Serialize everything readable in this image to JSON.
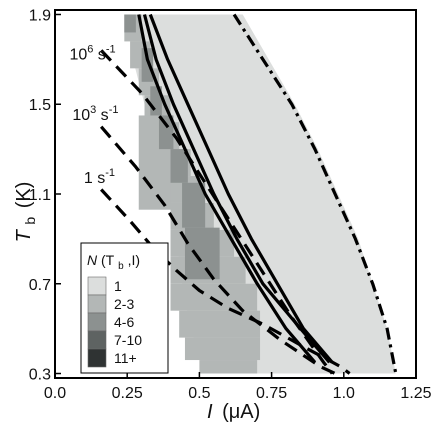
{
  "chart_data": {
    "type": "heatmap",
    "xlabel": {
      "main": "I",
      "unit": "(μA)"
    },
    "ylabel": {
      "main": "T",
      "sub": "b",
      "unit": "(K)"
    },
    "xlim": [
      0.0,
      1.25
    ],
    "ylim": [
      0.28,
      1.92
    ],
    "x_ticks": [
      0.0,
      0.25,
      0.5,
      0.75,
      1.0,
      1.25
    ],
    "x_tick_labels": [
      "0.0",
      "0.25",
      "0.5",
      "0.75",
      "1.0",
      "1.25"
    ],
    "y_ticks": [
      0.3,
      0.7,
      1.1,
      1.5,
      1.9
    ],
    "y_tick_labels": [
      "0.3",
      "0.7",
      "1.1",
      "1.5",
      "1.9"
    ],
    "grid": false,
    "colors": {
      "level_1": "#dcdedd",
      "level_2": "#b3b7b6",
      "level_3": "#8c9190",
      "level_4": "#5e6362",
      "level_5": "#2f3333",
      "lines": "#000000"
    },
    "legend": {
      "placement": "bottom-left",
      "title_parts": {
        "a": "N",
        "b": "(T",
        "c": "b",
        "d": ",I)"
      },
      "entries": [
        {
          "label": "1",
          "color": "#dcdedd"
        },
        {
          "label": "2-3",
          "color": "#b3b7b6"
        },
        {
          "label": "4-6",
          "color": "#8c9190"
        },
        {
          "label": "7-10",
          "color": "#5e6362"
        },
        {
          "label": "11+",
          "color": "#2f3333"
        }
      ]
    },
    "annotations": [
      {
        "id": "rate-1e6",
        "base": "10",
        "exp": "6",
        "unit": " s",
        "unit_exp": "-1",
        "x": 0.05,
        "y": 1.7
      },
      {
        "id": "rate-1e3",
        "base": "10",
        "exp": "3",
        "unit": " s",
        "unit_exp": "-1",
        "x": 0.06,
        "y": 1.43
      },
      {
        "id": "rate-1",
        "base": "1",
        "exp": "",
        "unit": " s",
        "unit_exp": "-1",
        "x": 0.1,
        "y": 1.15
      }
    ],
    "regions": {
      "level_1_envelope": {
        "left": [
          [
            0.25,
            1.9
          ],
          [
            0.27,
            1.7
          ],
          [
            0.31,
            1.5
          ],
          [
            0.35,
            1.3
          ],
          [
            0.39,
            1.1
          ],
          [
            0.42,
            0.9
          ],
          [
            0.44,
            0.7
          ],
          [
            0.47,
            0.5
          ],
          [
            0.52,
            0.3
          ]
        ],
        "right": [
          [
            0.65,
            1.9
          ],
          [
            0.74,
            1.7
          ],
          [
            0.83,
            1.5
          ],
          [
            0.91,
            1.3
          ],
          [
            0.98,
            1.1
          ],
          [
            1.05,
            0.9
          ],
          [
            1.1,
            0.7
          ],
          [
            1.15,
            0.5
          ],
          [
            1.18,
            0.3
          ]
        ]
      },
      "level_2_blocks": [
        {
          "x0": 0.24,
          "x1": 0.3,
          "y0": 1.78,
          "y1": 1.9
        },
        {
          "x0": 0.26,
          "x1": 0.33,
          "y0": 1.66,
          "y1": 1.78
        },
        {
          "x0": 0.29,
          "x1": 0.36,
          "y0": 1.54,
          "y1": 1.66
        },
        {
          "x0": 0.31,
          "x1": 0.4,
          "y0": 1.42,
          "y1": 1.54
        },
        {
          "x0": 0.34,
          "x1": 0.43,
          "y0": 1.3,
          "y1": 1.42
        },
        {
          "x0": 0.37,
          "x1": 0.47,
          "y0": 1.18,
          "y1": 1.3
        },
        {
          "x0": 0.39,
          "x1": 0.5,
          "y0": 1.06,
          "y1": 1.18
        },
        {
          "x0": 0.4,
          "x1": 0.55,
          "y0": 0.94,
          "y1": 1.06
        },
        {
          "x0": 0.4,
          "x1": 0.62,
          "y0": 0.82,
          "y1": 0.94
        },
        {
          "x0": 0.4,
          "x1": 0.66,
          "y0": 0.7,
          "y1": 0.82
        },
        {
          "x0": 0.4,
          "x1": 0.7,
          "y0": 0.58,
          "y1": 0.7
        },
        {
          "x0": 0.43,
          "x1": 0.71,
          "y0": 0.46,
          "y1": 0.58
        },
        {
          "x0": 0.45,
          "x1": 0.71,
          "y0": 0.36,
          "y1": 0.46
        },
        {
          "x0": 0.5,
          "x1": 0.7,
          "y0": 0.3,
          "y1": 0.36
        },
        {
          "x0": 0.29,
          "x1": 0.4,
          "y0": 1.03,
          "y1": 1.45
        }
      ],
      "level_3_blocks": [
        {
          "x0": 0.24,
          "x1": 0.28,
          "y0": 1.82,
          "y1": 1.9
        },
        {
          "x0": 0.3,
          "x1": 0.34,
          "y0": 1.6,
          "y1": 1.75
        },
        {
          "x0": 0.33,
          "x1": 0.37,
          "y0": 1.45,
          "y1": 1.58
        },
        {
          "x0": 0.36,
          "x1": 0.41,
          "y0": 1.3,
          "y1": 1.45
        },
        {
          "x0": 0.4,
          "x1": 0.46,
          "y0": 1.15,
          "y1": 1.3
        },
        {
          "x0": 0.44,
          "x1": 0.52,
          "y0": 0.95,
          "y1": 1.15
        },
        {
          "x0": 0.45,
          "x1": 0.57,
          "y0": 0.72,
          "y1": 0.95
        }
      ]
    },
    "lines": [
      {
        "name": "solid-1",
        "style": "solid",
        "points": [
          [
            0.29,
            1.9
          ],
          [
            0.32,
            1.7
          ],
          [
            0.38,
            1.5
          ],
          [
            0.45,
            1.3
          ],
          [
            0.52,
            1.1
          ],
          [
            0.61,
            0.9
          ],
          [
            0.7,
            0.7
          ],
          [
            0.8,
            0.5
          ],
          [
            0.9,
            0.35
          ]
        ]
      },
      {
        "name": "solid-2",
        "style": "solid",
        "points": [
          [
            0.31,
            1.9
          ],
          [
            0.35,
            1.7
          ],
          [
            0.41,
            1.5
          ],
          [
            0.48,
            1.3
          ],
          [
            0.55,
            1.1
          ],
          [
            0.63,
            0.9
          ],
          [
            0.72,
            0.7
          ],
          [
            0.85,
            0.5
          ],
          [
            0.95,
            0.35
          ]
        ]
      },
      {
        "name": "solid-3",
        "style": "solid",
        "points": [
          [
            0.33,
            1.9
          ],
          [
            0.39,
            1.7
          ],
          [
            0.46,
            1.5
          ],
          [
            0.53,
            1.3
          ],
          [
            0.6,
            1.1
          ],
          [
            0.68,
            0.9
          ],
          [
            0.77,
            0.7
          ],
          [
            0.86,
            0.5
          ],
          [
            0.96,
            0.35
          ]
        ]
      },
      {
        "name": "dashed-1",
        "style": "dashed",
        "points": [
          [
            0.16,
            1.74
          ],
          [
            0.3,
            1.55
          ],
          [
            0.42,
            1.35
          ],
          [
            0.52,
            1.15
          ],
          [
            0.62,
            0.95
          ],
          [
            0.72,
            0.75
          ],
          [
            0.82,
            0.55
          ],
          [
            0.93,
            0.35
          ],
          [
            0.96,
            0.3
          ]
        ]
      },
      {
        "name": "dashed-2",
        "style": "dashed",
        "points": [
          [
            0.16,
            1.4
          ],
          [
            0.28,
            1.22
          ],
          [
            0.38,
            1.05
          ],
          [
            0.46,
            0.88
          ],
          [
            0.55,
            0.72
          ],
          [
            0.65,
            0.58
          ],
          [
            0.78,
            0.45
          ],
          [
            0.92,
            0.33
          ],
          [
            0.97,
            0.3
          ]
        ]
      },
      {
        "name": "dashed-3",
        "style": "dashed",
        "points": [
          [
            0.16,
            1.12
          ],
          [
            0.26,
            0.98
          ],
          [
            0.34,
            0.86
          ],
          [
            0.42,
            0.76
          ],
          [
            0.5,
            0.67
          ],
          [
            0.6,
            0.59
          ],
          [
            0.72,
            0.52
          ],
          [
            0.86,
            0.42
          ],
          [
            0.99,
            0.33
          ],
          [
            1.02,
            0.3
          ]
        ]
      },
      {
        "name": "dashdot",
        "style": "dashdot",
        "points": [
          [
            0.62,
            1.9
          ],
          [
            0.72,
            1.7
          ],
          [
            0.82,
            1.5
          ],
          [
            0.9,
            1.3
          ],
          [
            0.97,
            1.1
          ],
          [
            1.04,
            0.9
          ],
          [
            1.1,
            0.7
          ],
          [
            1.15,
            0.5
          ],
          [
            1.18,
            0.3
          ]
        ]
      }
    ]
  }
}
